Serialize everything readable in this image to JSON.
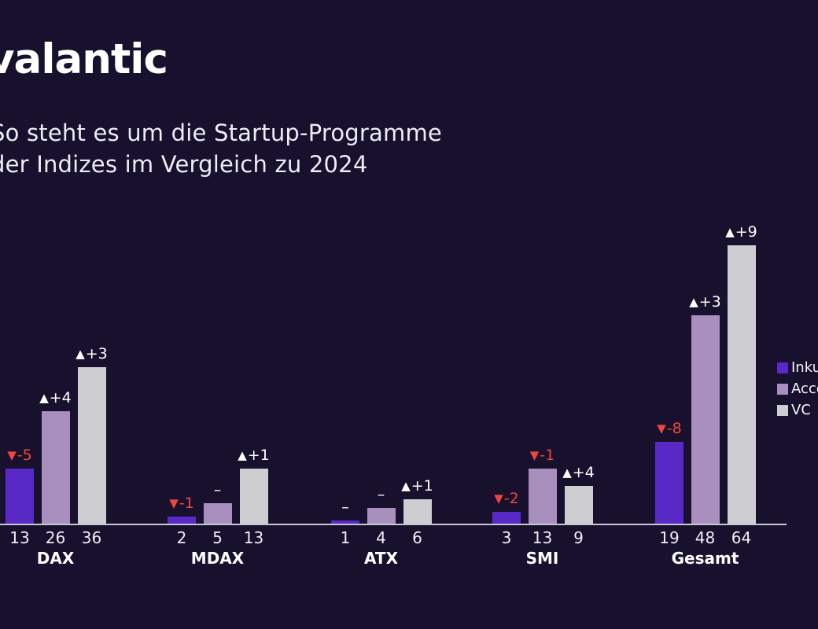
{
  "brand": {
    "logo_text": "valantic"
  },
  "title": {
    "line1": "So steht es um die Startup-Programme",
    "line2": "der Indizes im Vergleich zu 2024"
  },
  "colors": {
    "background": "#17112d",
    "inkubator": "#5829c7",
    "accelerator": "#a98fbe",
    "vc": "#cecdd2",
    "decrease_red": "#f2453d",
    "text": "#f2f0f6",
    "axis": "#c9c7d3"
  },
  "chart_data": {
    "type": "bar",
    "title": "So steht es um die Startup-Programme der Indizes im Vergleich zu 2024",
    "categories": [
      "DAX",
      "MDAX",
      "ATX",
      "SMI",
      "Gesamt"
    ],
    "series": [
      {
        "name": "Inkubator",
        "color": "#5829c7",
        "values": [
          13,
          2,
          1,
          3,
          19
        ]
      },
      {
        "name": "Accelerator",
        "color": "#a98fbe",
        "values": [
          26,
          5,
          4,
          13,
          48
        ]
      },
      {
        "name": "VC",
        "color": "#cecdd2",
        "values": [
          36,
          13,
          6,
          9,
          64
        ]
      }
    ],
    "groups": [
      {
        "label": "DAX",
        "bars": [
          {
            "series": "Inkubator",
            "value": 13,
            "change": "-5",
            "direction": "down"
          },
          {
            "series": "Accelerator",
            "value": 26,
            "change": "+4",
            "direction": "up"
          },
          {
            "series": "VC",
            "value": 36,
            "change": "+3",
            "direction": "up"
          }
        ]
      },
      {
        "label": "MDAX",
        "bars": [
          {
            "series": "Inkubator",
            "value": 2,
            "change": "-1",
            "direction": "down"
          },
          {
            "series": "Accelerator",
            "value": 5,
            "change": "–",
            "direction": "none"
          },
          {
            "series": "VC",
            "value": 13,
            "change": "+1",
            "direction": "up"
          }
        ]
      },
      {
        "label": "ATX",
        "bars": [
          {
            "series": "Inkubator",
            "value": 1,
            "change": "–",
            "direction": "none"
          },
          {
            "series": "Accelerator",
            "value": 4,
            "change": "–",
            "direction": "none"
          },
          {
            "series": "VC",
            "value": 6,
            "change": "+1",
            "direction": "up"
          }
        ]
      },
      {
        "label": "SMI",
        "bars": [
          {
            "series": "Inkubator",
            "value": 3,
            "change": "-2",
            "direction": "down"
          },
          {
            "series": "Accelerator",
            "value": 13,
            "change": "-1",
            "direction": "down"
          },
          {
            "series": "VC",
            "value": 9,
            "change": "+4",
            "direction": "up"
          }
        ]
      },
      {
        "label": "Gesamt",
        "bars": [
          {
            "series": "Inkubator",
            "value": 19,
            "change": "-8",
            "direction": "down"
          },
          {
            "series": "Accelerator",
            "value": 48,
            "change": "+3",
            "direction": "up"
          },
          {
            "series": "VC",
            "value": 64,
            "change": "+9",
            "direction": "up"
          }
        ]
      }
    ],
    "legend_position": "right",
    "legend_entries": [
      "Inkubator",
      "Accelerator",
      "VC"
    ],
    "grid": false,
    "y_axis_visible": false,
    "ylim": [
      0,
      66
    ],
    "annotation_style": "triangle up/down with delta vs 2024, dash for no change"
  }
}
